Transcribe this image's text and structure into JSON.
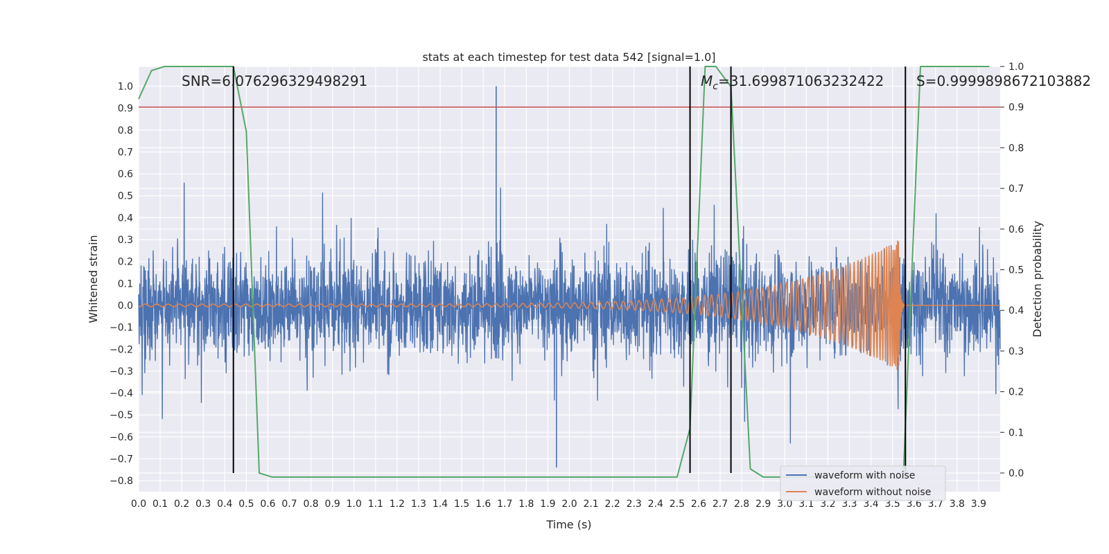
{
  "chart_data": {
    "type": "line",
    "title": "stats at each timestep for test data 542 [signal=1.0]",
    "xlabel": "Time (s)",
    "ylabel": "Whitened strain",
    "y2label": "Detection probability",
    "xlim": [
      0.0,
      4.0
    ],
    "ylim": [
      -0.85,
      1.09
    ],
    "y2lim": [
      -0.046,
      1.0
    ],
    "grid": true,
    "legend_placement": "lower-right",
    "x_ticks": [
      "0.0",
      "0.1",
      "0.2",
      "0.3",
      "0.4",
      "0.5",
      "0.6",
      "0.7",
      "0.8",
      "0.9",
      "1.0",
      "1.1",
      "1.2",
      "1.3",
      "1.4",
      "1.5",
      "1.6",
      "1.7",
      "1.8",
      "1.9",
      "2.0",
      "2.1",
      "2.2",
      "2.3",
      "2.4",
      "2.5",
      "2.6",
      "2.7",
      "2.8",
      "2.9",
      "3.0",
      "3.1",
      "3.2",
      "3.3",
      "3.4",
      "3.5",
      "3.6",
      "3.7",
      "3.8",
      "3.9"
    ],
    "y_ticks": [
      "1.0",
      "0.9",
      "0.8",
      "0.7",
      "0.6",
      "0.5",
      "0.4",
      "0.3",
      "0.2",
      "0.1",
      "0.0",
      "−0.1",
      "−0.2",
      "−0.3",
      "−0.4",
      "−0.5",
      "−0.6",
      "−0.7",
      "−0.8"
    ],
    "y2_ticks": [
      "1.0",
      "0.9",
      "0.8",
      "0.7",
      "0.6",
      "0.5",
      "0.4",
      "0.3",
      "0.2",
      "0.1",
      "0.0"
    ],
    "series": [
      {
        "name": "waveform with noise",
        "color": "#4c72b0",
        "kind": "noise",
        "x_range": [
          0.0,
          4.0
        ],
        "typical_amplitude": 0.3,
        "max": 1.0,
        "min": -0.74
      },
      {
        "name": "waveform without noise",
        "color": "#dd8452",
        "kind": "chirp",
        "x_range": [
          0.0,
          4.0
        ],
        "merger_time": 3.53,
        "peak_amplitude": 0.3
      },
      {
        "color": "#55a868",
        "axis": "right",
        "x": [
          0.0,
          0.06,
          0.12,
          0.44,
          0.5,
          0.56,
          0.62,
          2.5,
          2.56,
          2.63,
          2.68,
          2.75,
          2.84,
          2.9,
          3.55,
          3.63,
          3.95
        ],
        "y": [
          0.92,
          0.99,
          1.0,
          1.0,
          0.84,
          0.0,
          -0.01,
          -0.01,
          0.11,
          1.0,
          1.0,
          0.95,
          0.01,
          -0.01,
          -0.01,
          1.0,
          1.0
        ]
      }
    ],
    "threshold_line": {
      "y": 0.9,
      "axis": "right",
      "color": "#c44e52"
    },
    "vertical_lines": [
      {
        "x": 0.44,
        "ymin": 0.0,
        "ymax": 1.0,
        "color": "#000000"
      },
      {
        "x": 2.56,
        "ymin": 0.0,
        "ymax": 1.0,
        "color": "#000000"
      },
      {
        "x": 2.75,
        "ymin": 0.0,
        "ymax": 1.0,
        "color": "#000000"
      },
      {
        "x": 3.56,
        "ymin": 0.0,
        "ymax": 1.0,
        "color": "#000000"
      }
    ],
    "annotations": [
      {
        "text_snr": "SNR=6.076296329498291"
      },
      {
        "text_mc_symbol": "M",
        "text_mc_sub": "c",
        "text_mc_value": "=31.699871063232422"
      },
      {
        "text_s": "S=0.9999898672103882"
      }
    ],
    "legend": [
      "waveform with noise",
      "waveform without noise"
    ]
  }
}
